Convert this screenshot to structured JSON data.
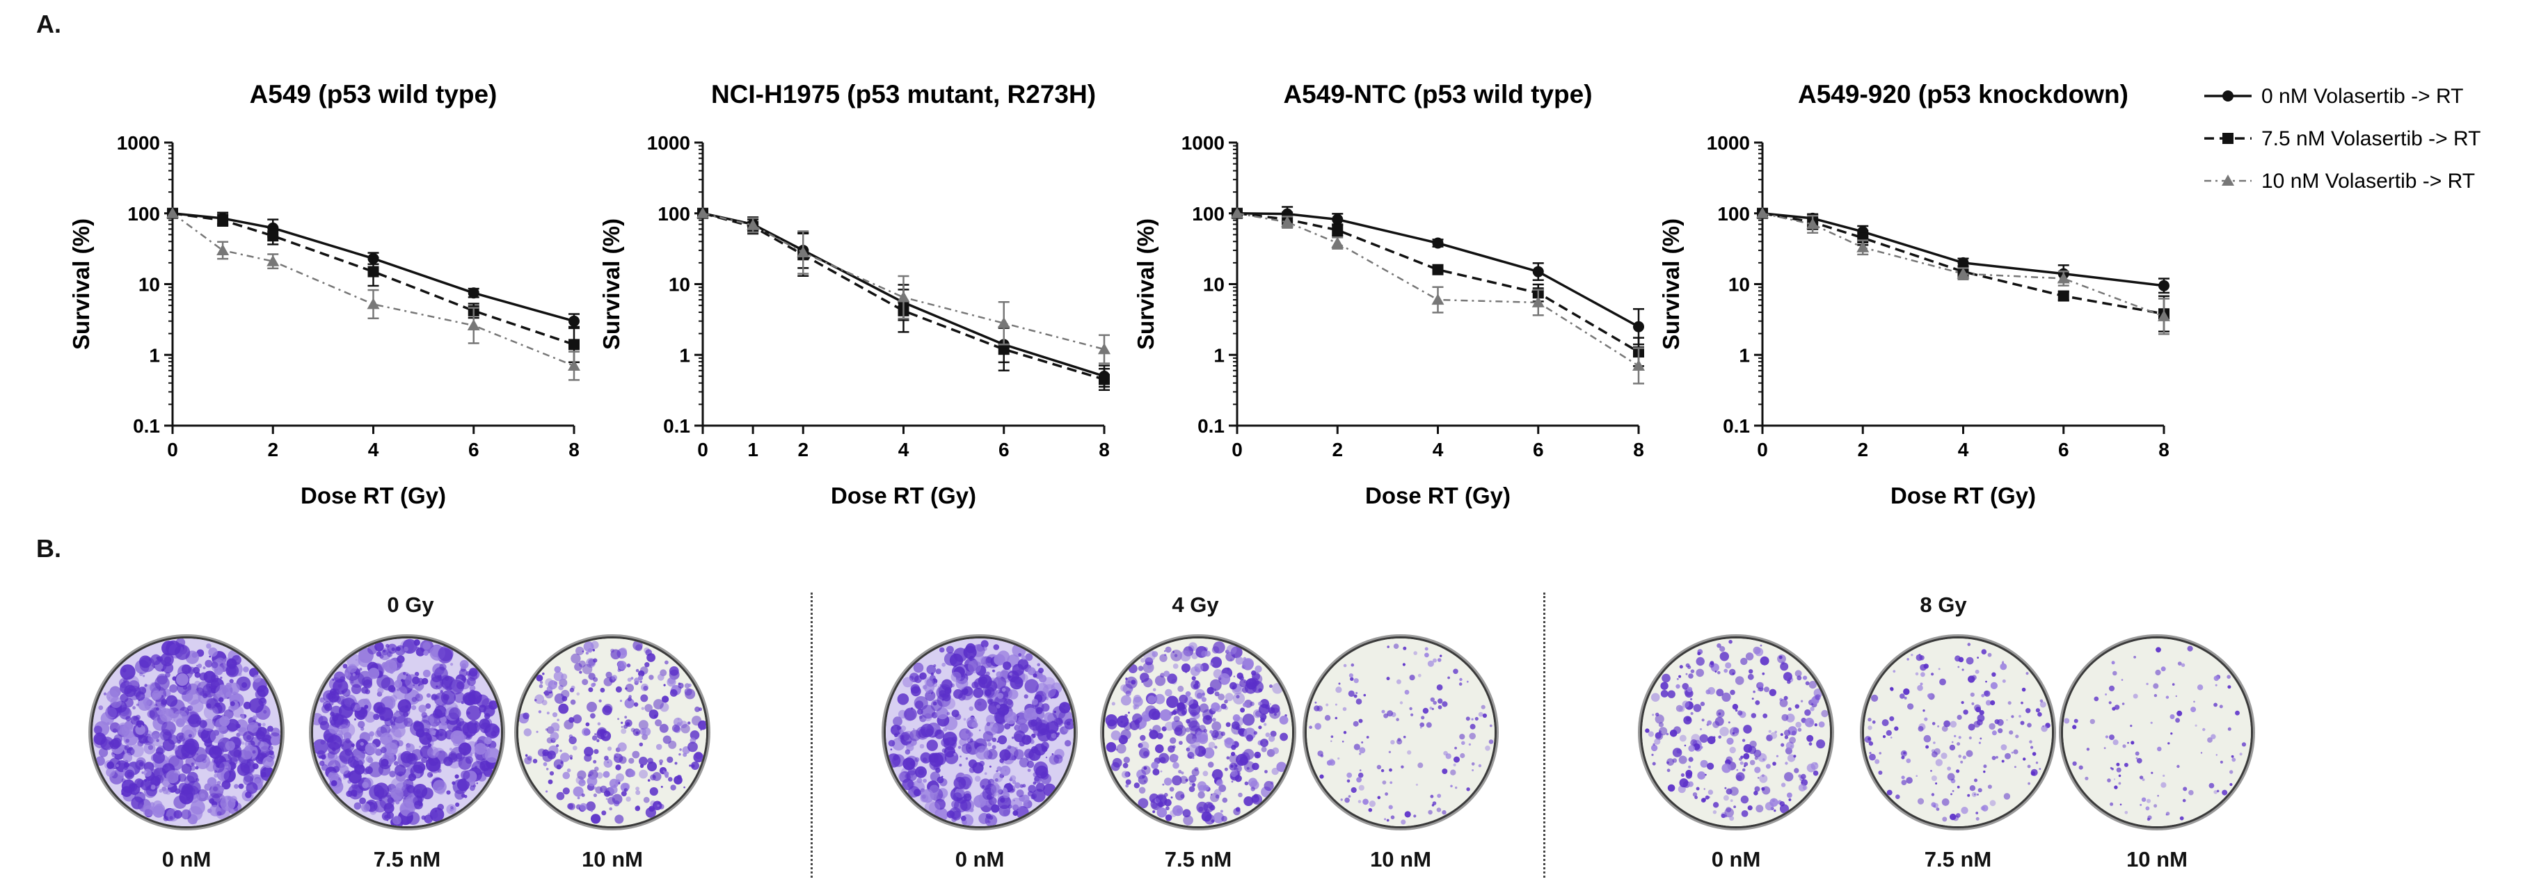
{
  "panel_a_label": "A.",
  "panel_b_label": "B.",
  "chart_data": [
    {
      "type": "line",
      "title": "A549 (p53 wild type)",
      "xlabel": "Dose RT (Gy)",
      "ylabel": "Survival (%)",
      "yscale": "log",
      "xlim": [
        0,
        8
      ],
      "ylim": [
        0.1,
        1000
      ],
      "xticks": [
        "0",
        "2",
        "4",
        "6",
        "8"
      ],
      "yticks": [
        "0.1",
        "1",
        "10",
        "100",
        "1000"
      ],
      "x": [
        0,
        1,
        2,
        4,
        6,
        8
      ],
      "series": [
        {
          "name": "0 nM Volasertib -> RT",
          "values": [
            100,
            85,
            62,
            23,
            7.5,
            3.0
          ],
          "errors": [
            0,
            0.08,
            0.12,
            0.08,
            0.06,
            0.1
          ]
        },
        {
          "name": "7.5 nM Volasertib -> RT",
          "values": [
            100,
            80,
            48,
            15,
            4.2,
            1.4
          ],
          "errors": [
            0,
            0.08,
            0.12,
            0.2,
            0.1,
            0.25
          ]
        },
        {
          "name": "10 nM Volasertib -> RT",
          "values": [
            100,
            30,
            21,
            5.2,
            2.6,
            0.7
          ],
          "errors": [
            0,
            0.12,
            0.1,
            0.2,
            0.25,
            0.2
          ]
        }
      ]
    },
    {
      "type": "line",
      "title": "NCI-H1975 (p53 mutant, R273H)",
      "xlabel": "Dose RT (Gy)",
      "ylabel": "Survival (%)",
      "yscale": "log",
      "xlim": [
        0,
        8
      ],
      "ylim": [
        0.1,
        1000
      ],
      "xticks": [
        "0",
        "1",
        "2",
        "4",
        "6",
        "8"
      ],
      "yticks": [
        "0.1",
        "1",
        "10",
        "100",
        "1000"
      ],
      "x": [
        0,
        1,
        2,
        4,
        6,
        8
      ],
      "series": [
        {
          "name": "0 nM Volasertib -> RT",
          "values": [
            100,
            70,
            30,
            5.5,
            1.4,
            0.5
          ],
          "errors": [
            0,
            0.1,
            0.25,
            0.25,
            0.25,
            0.15
          ]
        },
        {
          "name": "7.5 nM Volasertib -> RT",
          "values": [
            100,
            65,
            26,
            4.2,
            1.2,
            0.45
          ],
          "errors": [
            0,
            0.1,
            0.3,
            0.3,
            0.3,
            0.15
          ]
        },
        {
          "name": "10 nM Volasertib -> RT",
          "values": [
            100,
            68,
            28,
            6.5,
            2.8,
            1.2
          ],
          "errors": [
            0,
            0.1,
            0.3,
            0.3,
            0.3,
            0.2
          ]
        }
      ]
    },
    {
      "type": "line",
      "title": "A549-NTC (p53 wild type)",
      "xlabel": "Dose RT (Gy)",
      "ylabel": "Survival (%)",
      "yscale": "log",
      "xlim": [
        0,
        8
      ],
      "ylim": [
        0.1,
        1000
      ],
      "xticks": [
        "0",
        "2",
        "4",
        "6",
        "8"
      ],
      "yticks": [
        "0.1",
        "1",
        "10",
        "100",
        "1000"
      ],
      "x": [
        0,
        1,
        2,
        4,
        6,
        8
      ],
      "series": [
        {
          "name": "0 nM Volasertib -> RT",
          "values": [
            100,
            98,
            82,
            38,
            15,
            2.5
          ],
          "errors": [
            0,
            0.1,
            0.08,
            0.05,
            0.12,
            0.25
          ]
        },
        {
          "name": "7.5 nM Volasertib -> RT",
          "values": [
            100,
            82,
            58,
            16,
            7.5,
            1.1
          ],
          "errors": [
            0,
            0.1,
            0.08,
            0.05,
            0.12,
            0.2
          ]
        },
        {
          "name": "10 nM Volasertib -> RT",
          "values": [
            100,
            75,
            38,
            6.0,
            5.5,
            0.7
          ],
          "errors": [
            0,
            0.08,
            0.08,
            0.18,
            0.18,
            0.25
          ]
        }
      ]
    },
    {
      "type": "line",
      "title": "A549-920 (p53 knockdown)",
      "xlabel": "Dose RT (Gy)",
      "ylabel": "Survival (%)",
      "yscale": "log",
      "xlim": [
        0,
        8
      ],
      "ylim": [
        0.1,
        1000
      ],
      "xticks": [
        "0",
        "2",
        "4",
        "6",
        "8"
      ],
      "yticks": [
        "0.1",
        "1",
        "10",
        "100",
        "1000"
      ],
      "x": [
        0,
        1,
        2,
        4,
        6,
        8
      ],
      "series": [
        {
          "name": "0 nM Volasertib -> RT",
          "values": [
            100,
            85,
            55,
            20,
            14,
            9.5
          ],
          "errors": [
            0,
            0.06,
            0.08,
            0.06,
            0.12,
            0.1
          ]
        },
        {
          "name": "7.5 nM Volasertib -> RT",
          "values": [
            100,
            75,
            45,
            15,
            6.8,
            3.8
          ],
          "errors": [
            0,
            0.1,
            0.1,
            0.08,
            0.06,
            0.25
          ]
        },
        {
          "name": "10 nM Volasertib -> RT",
          "values": [
            100,
            70,
            33,
            14,
            12,
            3.5
          ],
          "errors": [
            0,
            0.12,
            0.1,
            0.08,
            0.1,
            0.25
          ]
        }
      ]
    }
  ],
  "legend": [
    {
      "label": "0 nM Volasertib -> RT",
      "style": "solid",
      "marker": "circle"
    },
    {
      "label": "7.5 nM Volasertib -> RT",
      "style": "dashed",
      "marker": "square"
    },
    {
      "label": "10 nM Volasertib -> RT",
      "style": "dashdot",
      "marker": "triangle"
    }
  ],
  "series_colors": [
    "#111111",
    "#111111",
    "#777777"
  ],
  "dose_groups": [
    {
      "label": "0 Gy",
      "plates": [
        {
          "label": "0 nM",
          "density": 1.0
        },
        {
          "label": "7.5 nM",
          "density": 1.0
        },
        {
          "label": "10 nM",
          "density": 0.55
        }
      ]
    },
    {
      "label": "4 Gy",
      "plates": [
        {
          "label": "0 nM",
          "density": 0.9
        },
        {
          "label": "7.5 nM",
          "density": 0.7
        },
        {
          "label": "10 nM",
          "density": 0.2
        }
      ]
    },
    {
      "label": "8 Gy",
      "plates": [
        {
          "label": "0 nM",
          "density": 0.45
        },
        {
          "label": "7.5 nM",
          "density": 0.28
        },
        {
          "label": "10 nM",
          "density": 0.12
        }
      ]
    }
  ],
  "plate_colors": {
    "stain": "#5b2fc9",
    "stain_light": "#9a7fe0",
    "background": "#eef0e8",
    "background_dense": "#d8d0f2"
  }
}
